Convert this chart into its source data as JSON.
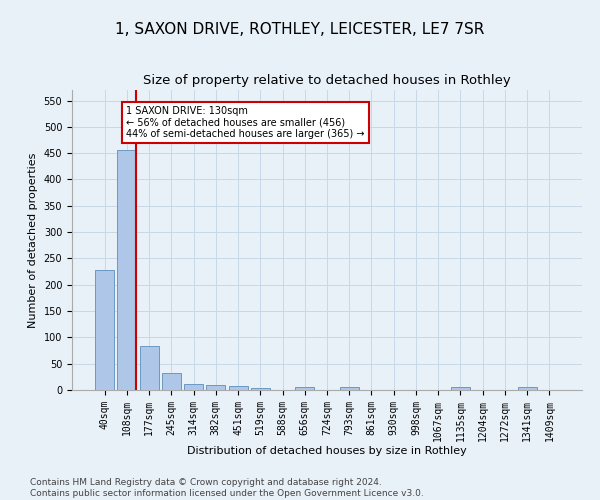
{
  "title": "1, SAXON DRIVE, ROTHLEY, LEICESTER, LE7 7SR",
  "subtitle": "Size of property relative to detached houses in Rothley",
  "xlabel": "Distribution of detached houses by size in Rothley",
  "ylabel": "Number of detached properties",
  "footer_line1": "Contains HM Land Registry data © Crown copyright and database right 2024.",
  "footer_line2": "Contains public sector information licensed under the Open Government Licence v3.0.",
  "bin_labels": [
    "40sqm",
    "108sqm",
    "177sqm",
    "245sqm",
    "314sqm",
    "382sqm",
    "451sqm",
    "519sqm",
    "588sqm",
    "656sqm",
    "724sqm",
    "793sqm",
    "861sqm",
    "930sqm",
    "998sqm",
    "1067sqm",
    "1135sqm",
    "1204sqm",
    "1272sqm",
    "1341sqm",
    "1409sqm"
  ],
  "bar_values": [
    228,
    456,
    83,
    32,
    12,
    10,
    7,
    4,
    0,
    5,
    0,
    5,
    0,
    0,
    0,
    0,
    5,
    0,
    0,
    5,
    0
  ],
  "bar_color": "#aec6e8",
  "bar_edge_color": "#5a8fc0",
  "grid_color": "#c8d8e8",
  "background_color": "#e8f0f8",
  "red_line_x": 1,
  "red_line_color": "#cc0000",
  "annotation_text": "1 SAXON DRIVE: 130sqm\n← 56% of detached houses are smaller (456)\n44% of semi-detached houses are larger (365) →",
  "annotation_box_color": "#ffffff",
  "annotation_box_edge": "#cc0000",
  "ylim": [
    0,
    570
  ],
  "yticks": [
    0,
    50,
    100,
    150,
    200,
    250,
    300,
    350,
    400,
    450,
    500,
    550
  ],
  "title_fontsize": 11,
  "subtitle_fontsize": 9.5,
  "axis_label_fontsize": 8,
  "tick_fontsize": 7,
  "footer_fontsize": 6.5
}
